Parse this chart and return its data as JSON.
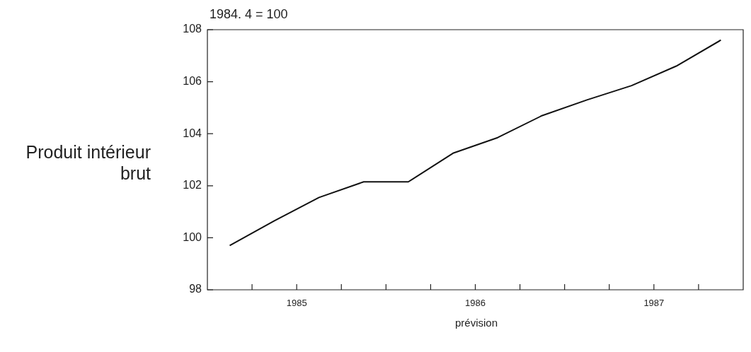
{
  "chart_data": {
    "type": "line",
    "title": "Produit intérieur brut",
    "ylabel": "1984. 4 = 100",
    "annotations": [
      "prévision"
    ],
    "x": [
      1984.625,
      1984.875,
      1985.125,
      1985.375,
      1985.625,
      1985.875,
      1986.125,
      1986.375,
      1986.625,
      1986.875,
      1987.125,
      1987.375
    ],
    "series": [
      {
        "color": "#111111",
        "values": [
          99.7,
          100.65,
          101.55,
          102.15,
          102.15,
          103.25,
          103.85,
          104.7,
          105.3,
          105.85,
          106.6,
          107.6
        ]
      }
    ],
    "xlim": [
      1984.5,
      1987.5
    ],
    "xticks": [
      {
        "value": 1984.75,
        "label": null
      },
      1985,
      {
        "value": 1985.25,
        "label": null
      },
      {
        "value": 1985.5,
        "label": null
      },
      {
        "value": 1985.75,
        "label": null
      },
      1986,
      {
        "value": 1986.25,
        "label": null
      },
      {
        "value": 1986.5,
        "label": null
      },
      {
        "value": 1986.75,
        "label": null
      },
      1987,
      {
        "value": 1987.25,
        "label": null
      }
    ],
    "ylim": [
      98,
      108
    ],
    "yticks": [
      98,
      100,
      102,
      104,
      106,
      108
    ],
    "grid": false,
    "legend": false,
    "marker": "none",
    "line_style": "solid"
  }
}
